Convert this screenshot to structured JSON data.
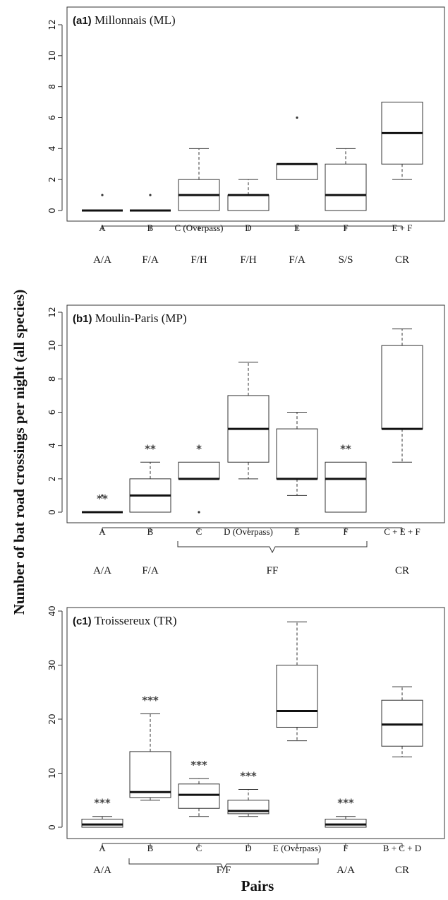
{
  "figure": {
    "ylabel": "Number of bat road crossings per night (all species)",
    "xlabel": "Pairs"
  },
  "chart_data": [
    {
      "type": "box",
      "title_bold": "(a1)",
      "title": "Millonnais (ML)",
      "ylim": [
        0,
        12
      ],
      "yticks": [
        0,
        2,
        4,
        6,
        8,
        10,
        12
      ],
      "categories": [
        "A",
        "B",
        "C (Overpass)",
        "D",
        "E",
        "F",
        "E + F"
      ],
      "boxes": [
        {
          "min": 0,
          "q1": 0,
          "median": 0,
          "q3": 0,
          "max": 0,
          "outliers": [
            1
          ],
          "sig": ""
        },
        {
          "min": 0,
          "q1": 0,
          "median": 0,
          "q3": 0,
          "max": 0,
          "outliers": [
            1
          ],
          "sig": ""
        },
        {
          "min": 0,
          "q1": 0,
          "median": 1,
          "q3": 2,
          "max": 4,
          "outliers": [],
          "sig": ""
        },
        {
          "min": 0,
          "q1": 0,
          "median": 1,
          "q3": 1,
          "max": 2,
          "outliers": [],
          "sig": ""
        },
        {
          "min": 2,
          "q1": 2,
          "median": 3,
          "q3": 3,
          "max": 3,
          "outliers": [
            6
          ],
          "sig": ""
        },
        {
          "min": 0,
          "q1": 0,
          "median": 1,
          "q3": 3,
          "max": 4,
          "outliers": [],
          "sig": ""
        },
        {
          "min": 2,
          "q1": 3,
          "median": 5,
          "q3": 7,
          "max": 7,
          "outliers": [],
          "sig": ""
        }
      ],
      "groups": [
        {
          "label": "A/A",
          "from": 0,
          "to": 0,
          "brace": false
        },
        {
          "label": "F/A",
          "from": 1,
          "to": 1,
          "brace": false
        },
        {
          "label": "F/H",
          "from": 2,
          "to": 2,
          "brace": false
        },
        {
          "label": "F/H",
          "from": 3,
          "to": 3,
          "brace": false
        },
        {
          "label": "F/A",
          "from": 4,
          "to": 4,
          "brace": false
        },
        {
          "label": "S/S",
          "from": 5,
          "to": 5,
          "brace": false
        },
        {
          "label": "CR",
          "from": 6,
          "to": 6,
          "brace": false
        }
      ]
    },
    {
      "type": "box",
      "title_bold": "(b1)",
      "title": "Moulin-Paris (MP)",
      "ylim": [
        0,
        12
      ],
      "yticks": [
        0,
        2,
        4,
        6,
        8,
        10,
        12
      ],
      "categories": [
        "A",
        "B",
        "C",
        "D (Overpass)",
        "E",
        "F",
        "C + E + F"
      ],
      "boxes": [
        {
          "min": 0,
          "q1": 0,
          "median": 0,
          "q3": 0,
          "max": 0,
          "outliers": [
            1
          ],
          "sig": "**"
        },
        {
          "min": 0,
          "q1": 0,
          "median": 1,
          "q3": 2,
          "max": 3,
          "outliers": [],
          "sig": "**"
        },
        {
          "min": 2,
          "q1": 2,
          "median": 2,
          "q3": 3,
          "max": 3,
          "outliers": [
            0
          ],
          "sig": "*"
        },
        {
          "min": 2,
          "q1": 3,
          "median": 5,
          "q3": 7,
          "max": 9,
          "outliers": [],
          "sig": ""
        },
        {
          "min": 1,
          "q1": 2,
          "median": 2,
          "q3": 5,
          "max": 6,
          "outliers": [],
          "sig": ""
        },
        {
          "min": 0,
          "q1": 0,
          "median": 2,
          "q3": 3,
          "max": 3,
          "outliers": [],
          "sig": "**"
        },
        {
          "min": 3,
          "q1": 5,
          "median": 5,
          "q3": 10,
          "max": 11,
          "outliers": [],
          "sig": ""
        }
      ],
      "groups": [
        {
          "label": "A/A",
          "from": 0,
          "to": 0,
          "brace": false
        },
        {
          "label": "F/A",
          "from": 1,
          "to": 1,
          "brace": false
        },
        {
          "label": "FF",
          "from": 2,
          "to": 5,
          "brace": true
        },
        {
          "label": "CR",
          "from": 6,
          "to": 6,
          "brace": false
        }
      ]
    },
    {
      "type": "box",
      "title_bold": "(c1)",
      "title": "Troissereux (TR)",
      "ylim": [
        0,
        40
      ],
      "yticks": [
        0,
        10,
        20,
        30,
        40
      ],
      "categories": [
        "A",
        "B",
        "C",
        "D",
        "E (Overpass)",
        "F",
        "B + C + D"
      ],
      "boxes": [
        {
          "min": 0,
          "q1": 0,
          "median": 0.5,
          "q3": 1.5,
          "max": 2,
          "outliers": [],
          "sig": "***"
        },
        {
          "min": 5,
          "q1": 5.5,
          "median": 6.5,
          "q3": 14,
          "max": 21,
          "outliers": [],
          "sig": "***"
        },
        {
          "min": 2,
          "q1": 3.5,
          "median": 6,
          "q3": 8,
          "max": 9,
          "outliers": [],
          "sig": "***"
        },
        {
          "min": 2,
          "q1": 2.5,
          "median": 3,
          "q3": 5,
          "max": 7,
          "outliers": [],
          "sig": "***"
        },
        {
          "min": 16,
          "q1": 18.5,
          "median": 21.5,
          "q3": 30,
          "max": 38,
          "outliers": [],
          "sig": ""
        },
        {
          "min": 0,
          "q1": 0,
          "median": 0.5,
          "q3": 1.5,
          "max": 2,
          "outliers": [],
          "sig": "***"
        },
        {
          "min": 13,
          "q1": 15,
          "median": 19,
          "q3": 23.5,
          "max": 26,
          "outliers": [],
          "sig": ""
        }
      ],
      "groups": [
        {
          "label": "A/A",
          "from": 0,
          "to": 0,
          "brace": false
        },
        {
          "label": "F/F",
          "from": 1,
          "to": 4,
          "brace": true
        },
        {
          "label": "A/A",
          "from": 5,
          "to": 5,
          "brace": false
        },
        {
          "label": "CR",
          "from": 6,
          "to": 6,
          "brace": false
        }
      ]
    }
  ]
}
